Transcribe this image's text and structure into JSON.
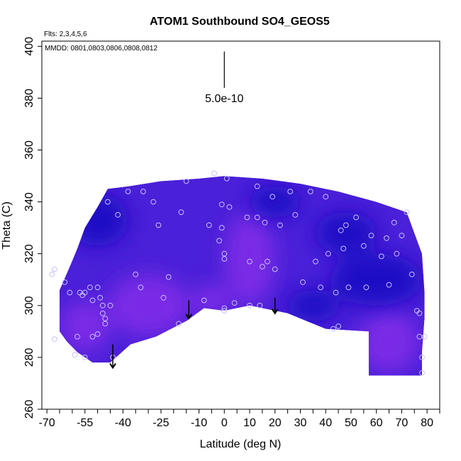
{
  "chart_data": {
    "type": "heatmap",
    "title": "ATOM1 Southbound SO4_GEOS5",
    "flights_note": "Flts: 2,3,4,5,6",
    "dates_note": "MMDD: 0801,0803,0806,0808,0812",
    "xlabel": "Latitude (deg N)",
    "ylabel": "Theta (C)",
    "xlim": [
      -72,
      85
    ],
    "ylim": [
      260,
      402
    ],
    "x_ticks": [
      -70,
      -55,
      -40,
      -25,
      -10,
      0,
      10,
      20,
      30,
      40,
      50,
      60,
      70,
      80
    ],
    "x_minor_ticks": [
      -65,
      -60,
      -50,
      -45,
      -35,
      -30,
      -20,
      -15,
      -5,
      5,
      15,
      25,
      35,
      45,
      55,
      65,
      75,
      85
    ],
    "y_ticks": [
      260,
      280,
      300,
      320,
      340,
      360,
      380,
      400
    ],
    "scale_bar": {
      "label": "5.0e-10",
      "x": 0,
      "y_top": 398,
      "y_bottom": 384
    },
    "colors": {
      "low": "#1a0fc4",
      "mid": "#4a20d8",
      "high": "#7a2ae6",
      "marker": "#c8c0ff"
    },
    "domain_outline": [
      [
        -65,
        306
      ],
      [
        -61,
        315
      ],
      [
        -58,
        322
      ],
      [
        -55,
        330
      ],
      [
        -50,
        338
      ],
      [
        -46,
        345
      ],
      [
        -38,
        346
      ],
      [
        -25,
        348
      ],
      [
        -10,
        349
      ],
      [
        0,
        350
      ],
      [
        15,
        349
      ],
      [
        30,
        347
      ],
      [
        45,
        344
      ],
      [
        60,
        340
      ],
      [
        72,
        336
      ],
      [
        78,
        320
      ],
      [
        79,
        305
      ],
      [
        79,
        295
      ],
      [
        78,
        282
      ],
      [
        78,
        273
      ],
      [
        57,
        273
      ],
      [
        57,
        290
      ],
      [
        40,
        291
      ],
      [
        25,
        297
      ],
      [
        10,
        300
      ],
      [
        0,
        298
      ],
      [
        -8,
        299
      ],
      [
        -15,
        294
      ],
      [
        -27,
        288
      ],
      [
        -37,
        285
      ],
      [
        -45,
        278
      ],
      [
        -52,
        278
      ],
      [
        -58,
        282
      ],
      [
        -62,
        286
      ],
      [
        -65,
        290
      ]
    ],
    "high_regions": [
      {
        "x": -30,
        "y": 300,
        "rx": 16,
        "ry": 12
      },
      {
        "x": -55,
        "y": 292,
        "rx": 10,
        "ry": 10
      },
      {
        "x": 10,
        "y": 318,
        "rx": 10,
        "ry": 18
      },
      {
        "x": 65,
        "y": 286,
        "rx": 12,
        "ry": 12
      },
      {
        "x": -5,
        "y": 302,
        "rx": 8,
        "ry": 6
      }
    ],
    "low_regions": [
      {
        "x": 48,
        "y": 328,
        "rx": 12,
        "ry": 8
      },
      {
        "x": 60,
        "y": 310,
        "rx": 18,
        "ry": 10
      },
      {
        "x": -50,
        "y": 333,
        "rx": 12,
        "ry": 10
      },
      {
        "x": 35,
        "y": 300,
        "rx": 10,
        "ry": 6
      },
      {
        "x": 20,
        "y": 340,
        "rx": 10,
        "ry": 6
      }
    ],
    "arrows": [
      {
        "x": -44,
        "y_top": 285,
        "y_bottom": 276
      },
      {
        "x": -14,
        "y_top": 302,
        "y_bottom": 295
      },
      {
        "x": 20,
        "y_top": 303,
        "y_bottom": 297
      }
    ],
    "points": [
      [
        -67,
        314
      ],
      [
        -68,
        312
      ],
      [
        -67,
        287
      ],
      [
        -63,
        309
      ],
      [
        -61,
        305
      ],
      [
        -57,
        305
      ],
      [
        -56,
        304
      ],
      [
        -55,
        305
      ],
      [
        -53,
        307
      ],
      [
        -52,
        302
      ],
      [
        -50,
        307
      ],
      [
        -49,
        303
      ],
      [
        -48,
        300
      ],
      [
        -48,
        297
      ],
      [
        -47,
        293
      ],
      [
        -47,
        295
      ],
      [
        -45,
        300
      ],
      [
        -50,
        289
      ],
      [
        -52,
        288
      ],
      [
        -55,
        280
      ],
      [
        -59,
        281
      ],
      [
        -58,
        288
      ],
      [
        -44,
        280
      ],
      [
        -42,
        335
      ],
      [
        -46,
        340
      ],
      [
        -38,
        344
      ],
      [
        -35,
        312
      ],
      [
        -33,
        307
      ],
      [
        -32,
        344
      ],
      [
        -28,
        340
      ],
      [
        -26,
        331
      ],
      [
        -24,
        303
      ],
      [
        -22,
        311
      ],
      [
        -18,
        293
      ],
      [
        -17,
        336
      ],
      [
        -15,
        348
      ],
      [
        -8,
        302
      ],
      [
        -6,
        331
      ],
      [
        -4,
        351
      ],
      [
        -2,
        325
      ],
      [
        -1,
        339
      ],
      [
        -1,
        330
      ],
      [
        0,
        320
      ],
      [
        0,
        318
      ],
      [
        0,
        298
      ],
      [
        0,
        299
      ],
      [
        1,
        349
      ],
      [
        2,
        338
      ],
      [
        4,
        301
      ],
      [
        9,
        334
      ],
      [
        10,
        300
      ],
      [
        10,
        317
      ],
      [
        13,
        346
      ],
      [
        13,
        334
      ],
      [
        14,
        300
      ],
      [
        15,
        315
      ],
      [
        16,
        332
      ],
      [
        17,
        317
      ],
      [
        19,
        342
      ],
      [
        20,
        314
      ],
      [
        22,
        331
      ],
      [
        26,
        344
      ],
      [
        28,
        335
      ],
      [
        31,
        309
      ],
      [
        34,
        344
      ],
      [
        36,
        317
      ],
      [
        38,
        307
      ],
      [
        40,
        342
      ],
      [
        41,
        320
      ],
      [
        43,
        291
      ],
      [
        44,
        305
      ],
      [
        45,
        292
      ],
      [
        46,
        329
      ],
      [
        47,
        322
      ],
      [
        48,
        331
      ],
      [
        49,
        307
      ],
      [
        52,
        334
      ],
      [
        55,
        323
      ],
      [
        56,
        307
      ],
      [
        58,
        327
      ],
      [
        62,
        319
      ],
      [
        64,
        326
      ],
      [
        65,
        308
      ],
      [
        67,
        332
      ],
      [
        68,
        320
      ],
      [
        70,
        327
      ],
      [
        72,
        336
      ],
      [
        74,
        312
      ],
      [
        76,
        298
      ],
      [
        77,
        297
      ],
      [
        77,
        288
      ],
      [
        78,
        280
      ],
      [
        78,
        274
      ],
      [
        79,
        288
      ]
    ]
  }
}
